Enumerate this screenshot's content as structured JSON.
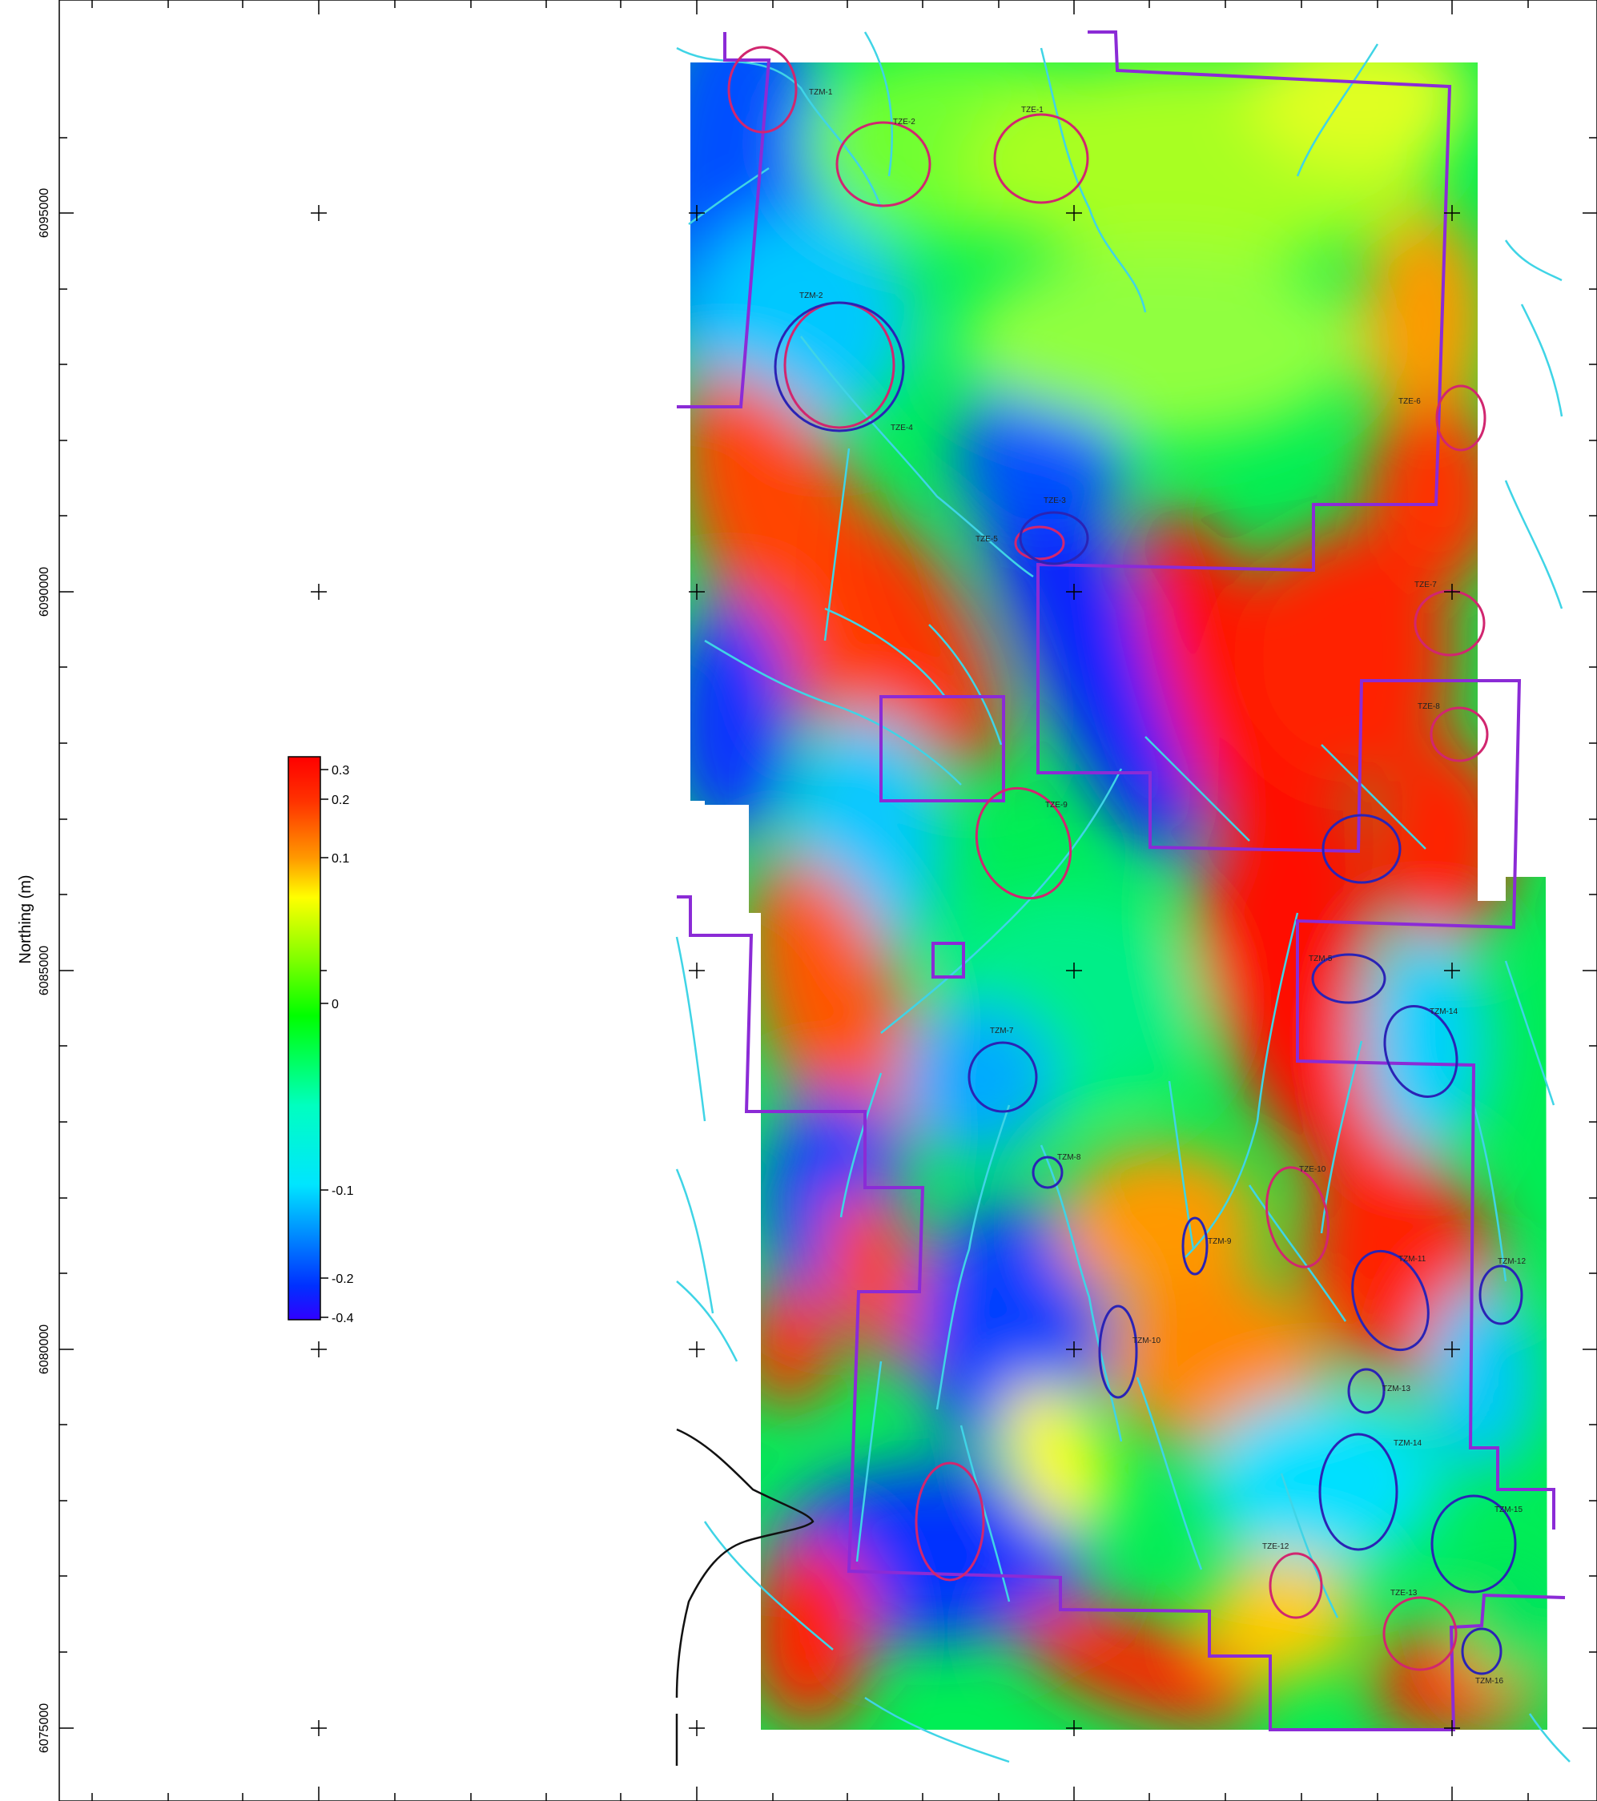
{
  "map": {
    "axis": {
      "ylabel": "Northing (m)",
      "northing_ticks": [
        "6095000",
        "6090000",
        "6085000",
        "6080000",
        "6075000"
      ]
    },
    "legend": {
      "labels": [
        "0.3",
        "0.2",
        "0.1",
        "0",
        "-0.1",
        "-0.2",
        "-0.4"
      ],
      "colors": [
        "#ff0000",
        "#ff7f00",
        "#ffff00",
        "#00ff00",
        "#00e5ff",
        "#0060ff",
        "#2000ff"
      ]
    },
    "colors": {
      "claim_boundary": "#8b2bd6",
      "e_target": "#d1266f",
      "m_target": "#2a23b5",
      "drainage": "#3fd4e6",
      "shoreline": "#111111"
    },
    "targets": {
      "tze": [
        "TZE-1",
        "TZE-2",
        "TZE-3",
        "TZE-4",
        "TZE-5",
        "TZE-6",
        "TZE-7",
        "TZE-8",
        "TZE-9",
        "TZE-10",
        "TZE-12",
        "TZE-13"
      ],
      "tzm": [
        "TZM-1",
        "TZM-2",
        "TZM-5",
        "TZM-7",
        "TZM-8",
        "TZM-9",
        "TZM-10",
        "TZM-11",
        "TZM-12",
        "TZM-13",
        "TZM-14",
        "TZM-15",
        "TZM-16"
      ]
    }
  }
}
